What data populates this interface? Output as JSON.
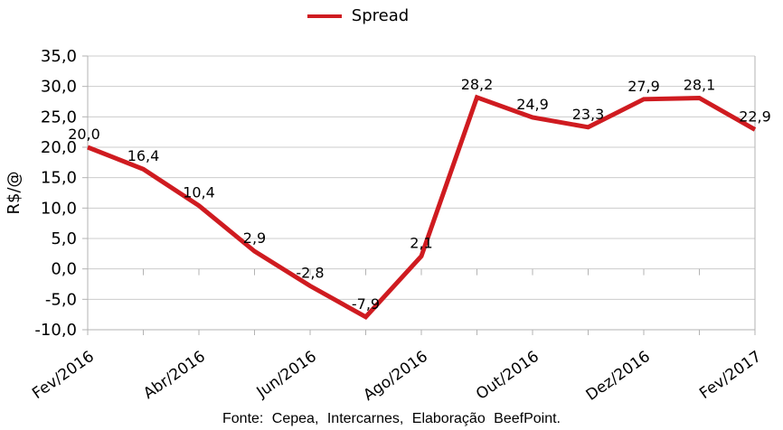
{
  "legend": {
    "label": "Spread"
  },
  "chart_data": {
    "type": "line",
    "title": "",
    "x_tick_labels": [
      "Fev/2016",
      "Abr/2016",
      "Jun/2016",
      "Ago/2016",
      "Out/2016",
      "Dez/2016",
      "Fev/2017"
    ],
    "x_tick_every": 2,
    "n_points": 13,
    "series": [
      {
        "name": "Spread",
        "color": "#cf1b20",
        "values": [
          20.0,
          16.4,
          10.4,
          2.9,
          -2.8,
          -7.9,
          2.1,
          28.2,
          24.9,
          23.3,
          27.9,
          28.1,
          22.9
        ],
        "value_labels": [
          "20,0",
          "16,4",
          "10,4",
          "2,9",
          "-2,8",
          "-7,9",
          "2,1",
          "28,2",
          "24,9",
          "23,3",
          "27,9",
          "28,1",
          "22,9"
        ]
      }
    ],
    "y_axis": {
      "label": "R$/@",
      "min": -10,
      "max": 35,
      "step": 5,
      "tick_labels": [
        "35,0",
        "30,0",
        "25,0",
        "20,0",
        "15,0",
        "10,0",
        "5,0",
        "0,0",
        "-5,0",
        "-10,0"
      ]
    },
    "grid": true,
    "legend_position": "top-center"
  },
  "footer": {
    "source": "Fonte: Cepea, Intercarnes, Elaboração BeefPoint."
  },
  "colors": {
    "series_red": "#cf1b20",
    "grid": "#cccccc",
    "frame": "#b3b3b3",
    "text": "#000000",
    "background": "#ffffff"
  }
}
